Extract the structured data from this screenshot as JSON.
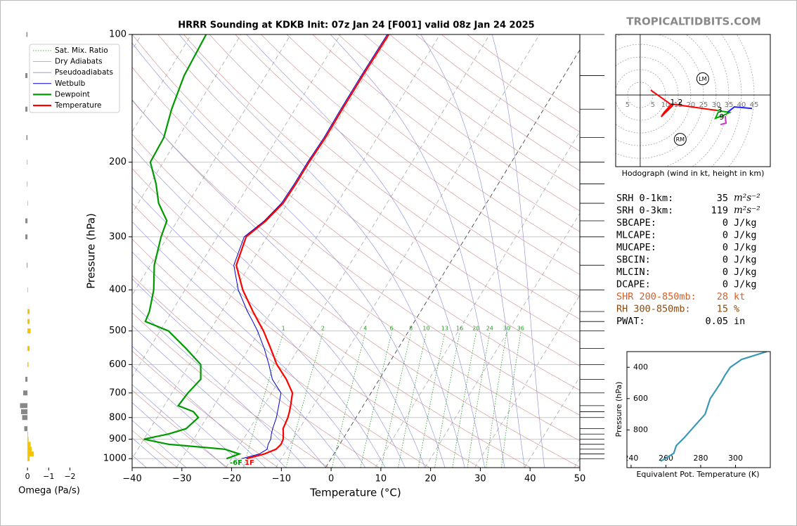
{
  "header": {
    "site": "TROPICALTIDBITS.COM"
  },
  "chart_data": [
    {
      "type": "skewt",
      "title": "HRRR Sounding at KDKB Init: 07z Jan 24 [F001] valid 08z Jan 24 2025",
      "xlabel": "Temperature (°C)",
      "ylabel": "Pressure (hPa)",
      "xlim": [
        -40,
        50
      ],
      "ylim": [
        1050,
        100
      ],
      "log_y": true,
      "grid": true,
      "legend": "upper left",
      "xticks": [
        {
          "value": -40,
          "label": "−40"
        },
        {
          "value": -30,
          "label": "−30"
        },
        {
          "value": -20,
          "label": "−20"
        },
        {
          "value": -10,
          "label": "−10"
        },
        0,
        10,
        20,
        30,
        40,
        50
      ],
      "yticks": [
        100,
        200,
        300,
        400,
        500,
        600,
        700,
        800,
        900,
        1000
      ],
      "pressure": [
        1000,
        975,
        950,
        925,
        900,
        875,
        850,
        800,
        775,
        750,
        700,
        650,
        600,
        550,
        500,
        475,
        450,
        400,
        350,
        300,
        275,
        250,
        225,
        200,
        175,
        150,
        125,
        100
      ],
      "series": [
        {
          "name": "Wetbulb",
          "color": "#0000cc",
          "width": 1,
          "values": [
            -18,
            -15,
            -14,
            -14.4,
            -14.5,
            -15,
            -15.4,
            -16,
            -16.5,
            -17,
            -18.1,
            -21.5,
            -24,
            -26.9,
            -30.4,
            -32.5,
            -34.8,
            -39.3,
            -43.2,
            -44.6,
            -42.5,
            -41.2,
            -41,
            -41,
            -40.7,
            -40.8,
            -40.8,
            -40.6
          ]
        },
        {
          "name": "Dewpoint",
          "color": "#009900",
          "width": 2.2,
          "values": [
            -21,
            -19,
            -22.5,
            -34.4,
            -40,
            -35.7,
            -32.8,
            -31.7,
            -33.4,
            -37.2,
            -36.8,
            -35.9,
            -37.7,
            -42.6,
            -48.3,
            -54.1,
            -54.5,
            -56.3,
            -59.2,
            -61.3,
            -62.1,
            -65.9,
            -68.8,
            -72.6,
            -72.9,
            -74.8,
            -76.4,
            -77
          ]
        },
        {
          "name": "Temperature",
          "color": "#ff0000",
          "width": 2.2,
          "values": [
            -17,
            -14,
            -12.2,
            -11.8,
            -12,
            -12.6,
            -13.3,
            -13.7,
            -14.1,
            -14.6,
            -15.8,
            -18.7,
            -22.4,
            -25.6,
            -29.2,
            -31.4,
            -33.7,
            -38.4,
            -42.7,
            -44.2,
            -42.2,
            -40.9,
            -40.7,
            -40.7,
            -40.4,
            -40.5,
            -40.5,
            -40.3
          ]
        }
      ],
      "reference_lines": [
        {
          "name": "Sat. Mix. Ratio",
          "color": "#2a9a2a",
          "style": "dotted"
        },
        {
          "name": "Dry Adiabats",
          "color": "#d08a8a",
          "style": "solid"
        },
        {
          "name": "Pseudoadiabats",
          "color": "#8a8ad8",
          "style": "solid"
        }
      ],
      "mixing_ratios": [
        1,
        2,
        4,
        6,
        8,
        10,
        13,
        16,
        20,
        24,
        30,
        36
      ],
      "surface_labels": [
        {
          "text": "-6F",
          "color": "#009900"
        },
        {
          "text": "1F",
          "color": "#ff0000"
        }
      ]
    },
    {
      "type": "omega",
      "xlabel": "Omega (Pa/s)",
      "xlim": [
        0.4,
        -2.35
      ],
      "ylim": [
        1050,
        100
      ],
      "xticks": [
        0,
        {
          "value": -1,
          "label": "−1"
        },
        {
          "value": -2,
          "label": "−2"
        }
      ],
      "pressure": [
        1000,
        975,
        950,
        925,
        900,
        875,
        850,
        800,
        775,
        750,
        700,
        650,
        600,
        550,
        500,
        475,
        450,
        400,
        350,
        300,
        275,
        250,
        225,
        200,
        175,
        150,
        125,
        100
      ],
      "values": [
        -0.1,
        -0.3,
        -0.2,
        -0.15,
        -0.05,
        0,
        0.15,
        0.25,
        0.3,
        0.35,
        0.2,
        0.1,
        -0.05,
        -0.1,
        -0.15,
        -0.1,
        -0.1,
        -0.03,
        0.03,
        0.1,
        0.1,
        0,
        0.02,
        0.02,
        0.05,
        0.1,
        0.1,
        0.05
      ],
      "color": "#888888",
      "negative_color": "#f5c400"
    },
    {
      "type": "hodograph",
      "xlabel": "Hodograph (wind in kt, height in km)",
      "xlim": [
        -9.7,
        51.4
      ],
      "ylim": [
        -28.3,
        23.9
      ],
      "rings": [
        {
          "value": -5,
          "label": "5"
        },
        5,
        10,
        15,
        20,
        25,
        30,
        35,
        40,
        45
      ],
      "series": [
        {
          "color": "#ff0000",
          "u": [
            4.2,
            12.8,
            8.3,
            9.4,
            12.5,
            30.3
          ],
          "v": [
            1.9,
            -4.2,
            -8.6,
            -6.9,
            -3.6,
            -6.1
          ]
        },
        {
          "color": "#00aa00",
          "u": [
            30.3,
            35.3,
            33,
            29.7,
            30.8
          ],
          "v": [
            -6.1,
            -6.9,
            -8,
            -9.2,
            -6.9
          ]
        },
        {
          "color": "#cc33cc",
          "u": [
            33.6,
            33.9,
            31.7
          ],
          "v": [
            -8.3,
            -11.1,
            -11.7
          ]
        },
        {
          "color": "#2222ff",
          "u": [
            34.4,
            37.2,
            44.2
          ],
          "v": [
            -6.9,
            -4.7,
            -5.3
          ]
        }
      ],
      "height_labels": [
        {
          "label": 1,
          "u": 12.8,
          "v": -3
        },
        {
          "label": 2,
          "u": 15.8,
          "v": -3
        },
        {
          "label": 3,
          "u": 31.4,
          "v": -6.1
        },
        {
          "label": 9,
          "u": 32.2,
          "v": -8.9
        }
      ],
      "storm_motion": [
        {
          "label": "LM",
          "u": 24.7,
          "v": 6.4
        },
        {
          "label": "RM",
          "u": 15.8,
          "v": -17.5
        }
      ]
    },
    {
      "type": "line",
      "xlabel": "Equivalent Pot. Temperature (K)",
      "ylabel": "Pressure (hPa)",
      "xlim": [
        237.6,
        320
      ],
      "ylim": [
        1041,
        300
      ],
      "xticks": [
        240,
        260,
        280,
        300
      ],
      "yticks": [
        400,
        600,
        800
      ],
      "pressure": [
        1000,
        950,
        900,
        850,
        800,
        750,
        700,
        650,
        600,
        550,
        500,
        450,
        400,
        350,
        300
      ],
      "values": [
        257,
        264.5,
        266,
        270.5,
        274.5,
        278.5,
        282.5,
        284,
        285.5,
        288.5,
        291.5,
        294,
        297,
        303.5,
        318
      ],
      "color": "#3a97b5"
    }
  ],
  "stats": [
    {
      "label": "SRH 0-1km:",
      "value": 35,
      "unit": "m²s⁻²"
    },
    {
      "label": "SRH 0-3km:",
      "value": 119,
      "unit": "m²s⁻²"
    },
    {
      "label": "SBCAPE:",
      "value": 0,
      "unit": "J/kg"
    },
    {
      "label": "MLCAPE:",
      "value": 0,
      "unit": "J/kg"
    },
    {
      "label": "MUCAPE:",
      "value": 0,
      "unit": "J/kg"
    },
    {
      "label": "SBCIN:",
      "value": 0,
      "unit": "J/kg"
    },
    {
      "label": "MLCIN:",
      "value": 0,
      "unit": "J/kg"
    },
    {
      "label": "DCAPE:",
      "value": 0,
      "unit": "J/kg"
    },
    {
      "label": "SHR 200-850mb:",
      "value": 28,
      "unit": "kt",
      "color": "#d2602a"
    },
    {
      "label": "RH 300-850mb:",
      "value": 15,
      "unit": "%",
      "color": "#8b4a10"
    },
    {
      "label": "PWAT:",
      "value": 0.05,
      "unit": "in"
    }
  ]
}
